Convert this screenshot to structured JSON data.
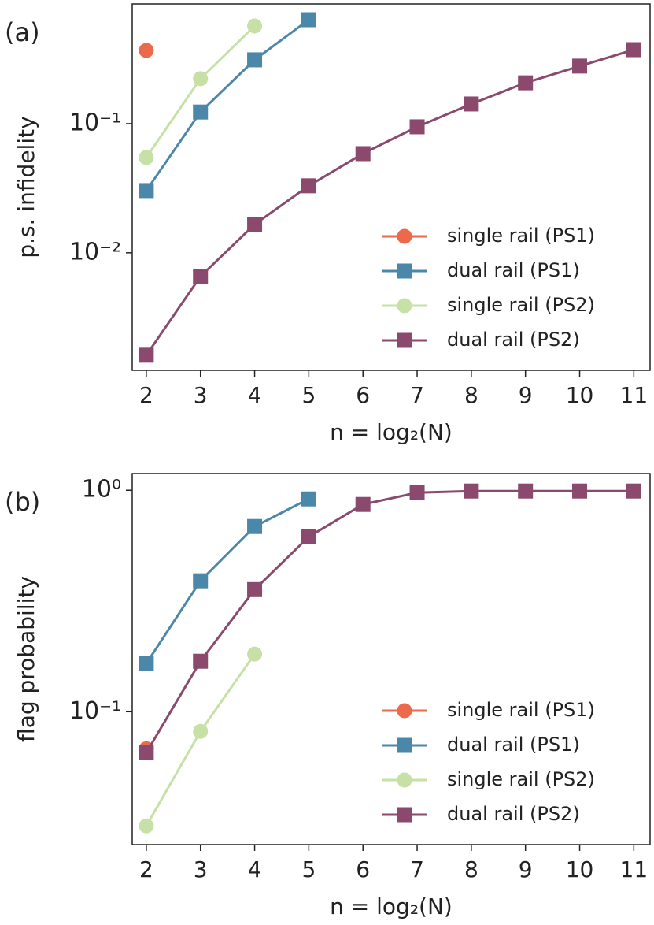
{
  "chart_data": [
    {
      "type": "line",
      "panel_label": "(a)",
      "ylabel": "p.s. infidelity",
      "xlabel": "n = log₂(N)",
      "x": [
        2,
        3,
        4,
        5,
        6,
        7,
        8,
        9,
        10,
        11
      ],
      "xlim": [
        1.74,
        11.3
      ],
      "xticks": [
        2,
        3,
        4,
        5,
        6,
        7,
        8,
        9,
        10,
        11
      ],
      "ylim": [
        0.00123,
        0.845
      ],
      "yscale": "log",
      "yticks": [
        {
          "value": 0.1,
          "label": "10⁻¹"
        },
        {
          "value": 0.01,
          "label": "10⁻²"
        }
      ],
      "legend": "lower right",
      "series": [
        {
          "name": "single rail (PS1)",
          "color": "#ec6a4c",
          "marker": "circle",
          "values": [
            0.369,
            null,
            null,
            null,
            null,
            null,
            null,
            null,
            null,
            null
          ]
        },
        {
          "name": "dual rail (PS1)",
          "color": "#4b87a8",
          "marker": "square",
          "values": [
            0.0303,
            0.123,
            0.312,
            0.638,
            null,
            null,
            null,
            null,
            null,
            null
          ]
        },
        {
          "name": "single rail (PS2)",
          "color": "#c6e0a6",
          "marker": "circle",
          "values": [
            0.0547,
            0.223,
            0.57,
            null,
            null,
            null,
            null,
            null,
            null,
            null
          ]
        },
        {
          "name": "dual rail (PS2)",
          "color": "#8b4a6d",
          "marker": "square",
          "values": [
            0.00161,
            0.00656,
            0.0166,
            0.033,
            0.0586,
            0.0945,
            0.142,
            0.207,
            0.279,
            0.374
          ]
        }
      ]
    },
    {
      "type": "line",
      "panel_label": "(b)",
      "ylabel": "flag probability",
      "xlabel": "n = log₂(N)",
      "x": [
        2,
        3,
        4,
        5,
        6,
        7,
        8,
        9,
        10,
        11
      ],
      "xlim": [
        1.74,
        11.3
      ],
      "xticks": [
        2,
        3,
        4,
        5,
        6,
        7,
        8,
        9,
        10,
        11
      ],
      "ylim": [
        0.0251,
        1.19
      ],
      "yscale": "log",
      "yticks": [
        {
          "value": 1,
          "label": "10⁰"
        },
        {
          "value": 0.1,
          "label": "10⁻¹"
        }
      ],
      "legend": "lower right",
      "series": [
        {
          "name": "single rail (PS1)",
          "color": "#ec6a4c",
          "marker": "circle",
          "values": [
            0.068,
            null,
            null,
            null,
            null,
            null,
            null,
            null,
            null,
            null
          ]
        },
        {
          "name": "dual rail (PS1)",
          "color": "#4b87a8",
          "marker": "square",
          "values": [
            0.165,
            0.39,
            0.686,
            0.914,
            null,
            null,
            null,
            null,
            null,
            null
          ]
        },
        {
          "name": "single rail (PS2)",
          "color": "#c6e0a6",
          "marker": "circle",
          "values": [
            0.0305,
            0.0815,
            0.182,
            null,
            null,
            null,
            null,
            null,
            null,
            null
          ]
        },
        {
          "name": "dual rail (PS2)",
          "color": "#8b4a6d",
          "marker": "square",
          "values": [
            0.0653,
            0.169,
            0.356,
            0.617,
            0.863,
            0.976,
            0.992,
            0.992,
            0.992,
            0.992
          ]
        }
      ]
    }
  ]
}
